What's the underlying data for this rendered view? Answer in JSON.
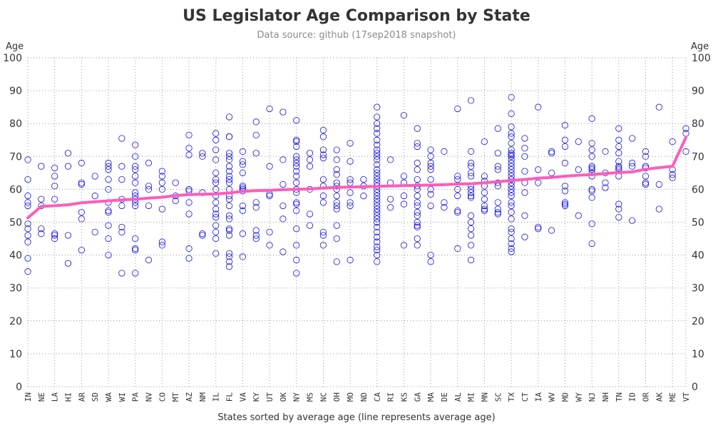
{
  "chart_data": {
    "type": "scatter",
    "title": "US Legislator Age Comparison by State",
    "subtitle": "Data source: github (17sep2018 snapshot)",
    "xlabel": "States sorted by average age (line represents average age)",
    "ylabel_left": "Age",
    "ylabel_right": "Age",
    "ylim": [
      0,
      100
    ],
    "yticks": [
      0,
      10,
      20,
      30,
      40,
      50,
      60,
      70,
      80,
      90,
      100
    ],
    "grid": true,
    "colors": {
      "points": "#1010e8",
      "average_line": "#ff5cb8",
      "grid": "#9a9a9a"
    },
    "categories": [
      "IN",
      "NE",
      "LA",
      "HI",
      "AR",
      "SD",
      "WA",
      "WI",
      "PA",
      "NV",
      "CO",
      "MT",
      "AZ",
      "NM",
      "IL",
      "FL",
      "VA",
      "KY",
      "UT",
      "OK",
      "NY",
      "MS",
      "NC",
      "OH",
      "MO",
      "ND",
      "CA",
      "RI",
      "KS",
      "GA",
      "MA",
      "DE",
      "AL",
      "MI",
      "MN",
      "SC",
      "TX",
      "CT",
      "IA",
      "WV",
      "MD",
      "WY",
      "NJ",
      "NH",
      "TN",
      "ID",
      "OR",
      "AK",
      "ME",
      "VT"
    ],
    "average_age": [
      51.3,
      54.8,
      55.0,
      55.3,
      55.9,
      56.2,
      56.5,
      56.8,
      57.0,
      57.3,
      57.6,
      58.1,
      58.4,
      58.5,
      58.6,
      58.9,
      59.4,
      59.6,
      59.7,
      59.9,
      60.0,
      60.1,
      60.4,
      60.6,
      60.7,
      60.8,
      60.9,
      61.0,
      61.1,
      61.2,
      61.3,
      61.4,
      61.6,
      61.7,
      62.0,
      62.3,
      62.7,
      63.0,
      63.4,
      63.6,
      64.0,
      64.3,
      64.5,
      64.8,
      65.1,
      65.3,
      66.1,
      66.6,
      67.0,
      75.8
    ],
    "points": {
      "IN": [
        69,
        63,
        58,
        56,
        55,
        49.5,
        48,
        46,
        44,
        39,
        35
      ],
      "NE": [
        67,
        57,
        55,
        48,
        46.5
      ],
      "LA": [
        66.5,
        64,
        61,
        57,
        46.5,
        46,
        45
      ],
      "HI": [
        71,
        67,
        46,
        37.5
      ],
      "AR": [
        68,
        62,
        61.5,
        53,
        51,
        41.5
      ],
      "SD": [
        64,
        58,
        47
      ],
      "WA": [
        68,
        67,
        66,
        63,
        60,
        56,
        53,
        53.5,
        49,
        45,
        40
      ],
      "WI": [
        75.5,
        67,
        63,
        57,
        55,
        48.5,
        47,
        34.5
      ],
      "PA": [
        73.5,
        70,
        67,
        66,
        64,
        62,
        59,
        58,
        57,
        56,
        55,
        45,
        42,
        41.5,
        34.5
      ],
      "NV": [
        68,
        61,
        60,
        55,
        38.5
      ],
      "CO": [
        65.5,
        64,
        62,
        60,
        54,
        44,
        43
      ],
      "MT": [
        62,
        58,
        56.5
      ],
      "AZ": [
        76.5,
        72.5,
        70.5,
        60,
        59.5,
        56,
        52.5,
        42,
        39
      ],
      "NM": [
        71,
        70,
        59,
        46.5,
        46
      ],
      "IL": [
        77,
        75,
        72,
        69,
        65,
        63,
        62,
        60,
        58,
        56,
        54,
        52.5,
        51.5,
        49,
        47,
        45,
        40.5
      ],
      "FL": [
        82,
        76,
        76,
        71,
        70,
        69,
        67,
        65.5,
        64,
        63,
        62,
        60,
        58,
        57,
        55,
        52,
        51,
        48,
        47.5,
        46,
        40.5,
        39.5,
        38,
        36.5
      ],
      "VA": [
        71.5,
        68.5,
        67.5,
        65,
        61,
        60.5,
        60,
        59.5,
        55,
        53.5,
        46.5,
        39.5
      ],
      "KY": [
        80.5,
        76.5,
        71,
        56,
        54.5,
        47.5,
        46,
        45
      ],
      "UT": [
        84.5,
        67,
        58.5,
        58,
        47,
        43
      ],
      "OK": [
        83.5,
        69,
        61.5,
        55,
        51,
        41
      ],
      "NY": [
        81,
        75,
        74.5,
        73,
        70,
        69,
        68,
        67,
        65.5,
        64,
        62,
        60,
        59,
        56,
        55.5,
        53.5,
        48,
        43,
        38.5,
        34.5
      ],
      "MS": [
        71,
        69,
        67,
        60,
        52.5,
        49
      ],
      "NC": [
        78,
        76,
        72,
        70.5,
        69.5,
        63,
        61,
        58,
        56,
        47,
        46,
        43
      ],
      "OH": [
        72,
        69,
        66,
        64.5,
        62,
        61,
        60,
        58,
        56,
        55,
        54,
        49,
        45,
        38
      ],
      "MO": [
        74,
        68.5,
        63,
        62,
        59,
        56,
        55,
        38.5
      ],
      "ND": [
        63,
        61,
        58
      ],
      "CA": [
        85,
        82,
        80,
        78.5,
        77,
        75,
        73.5,
        72,
        71,
        70,
        69,
        67.5,
        66,
        65,
        64,
        63,
        62,
        61,
        60,
        59,
        58,
        57,
        56,
        55,
        54,
        53,
        52,
        51,
        50,
        48.5,
        47,
        45.5,
        44,
        42.5,
        41.5,
        40,
        38
      ],
      "RI": [
        69,
        62,
        57,
        54.5
      ],
      "KS": [
        82.5,
        64,
        62,
        58,
        55.5,
        43
      ],
      "GA": [
        78.5,
        74,
        73,
        68,
        66,
        63,
        61,
        60,
        58,
        56,
        55,
        53,
        52,
        50,
        49,
        48.5,
        45,
        43
      ],
      "MA": [
        72,
        70,
        68,
        67,
        66,
        63,
        60,
        58.5,
        55,
        40,
        38
      ],
      "DE": [
        71.5,
        56,
        54.5
      ],
      "AL": [
        84.5,
        64,
        63,
        60,
        58,
        53.5,
        53,
        42
      ],
      "MI": [
        87,
        71.5,
        68,
        67,
        65,
        64,
        61,
        60,
        59,
        58,
        57.5,
        52,
        50,
        48,
        46,
        43,
        38.5
      ],
      "MN": [
        74.5,
        64,
        62.5,
        61,
        59,
        57,
        55,
        54,
        53.5
      ],
      "SC": [
        78.5,
        71,
        67,
        66,
        62,
        61,
        56,
        54,
        53,
        52.5
      ],
      "TX": [
        88,
        83,
        79,
        77,
        76,
        74,
        72,
        71,
        70.5,
        70,
        69,
        68,
        67,
        66,
        65,
        64,
        63,
        62,
        61,
        60,
        59,
        58,
        56,
        55,
        53,
        51,
        48,
        47,
        45,
        43.5,
        42,
        41
      ],
      "CT": [
        75.5,
        72.5,
        70,
        65.5,
        62,
        59,
        52,
        45.5
      ],
      "IA": [
        85,
        66,
        62,
        48.5,
        48
      ],
      "WV": [
        71.5,
        71,
        65,
        47.5
      ],
      "MD": [
        79.5,
        75,
        73,
        68,
        61,
        59.5,
        56,
        55.5,
        55
      ],
      "WY": [
        74.5,
        66,
        52
      ],
      "NJ": [
        81.5,
        74,
        72,
        70,
        67,
        66.5,
        66,
        65,
        64,
        60,
        59.5,
        57.5,
        49.5,
        43.5
      ],
      "NH": [
        71.5,
        65,
        62,
        60.5
      ],
      "TN": [
        78.5,
        75,
        73,
        71,
        68.5,
        67,
        66.5,
        66,
        64,
        55.5,
        54,
        51.5
      ],
      "ID": [
        75.5,
        68,
        67,
        50.5
      ],
      "OR": [
        71.5,
        70,
        67,
        66.5,
        64,
        62,
        61.5
      ],
      "AK": [
        85,
        61.5,
        54
      ],
      "ME": [
        74.5,
        66,
        64.5,
        63.5
      ],
      "VT": [
        78.5,
        77,
        71.5
      ]
    }
  }
}
